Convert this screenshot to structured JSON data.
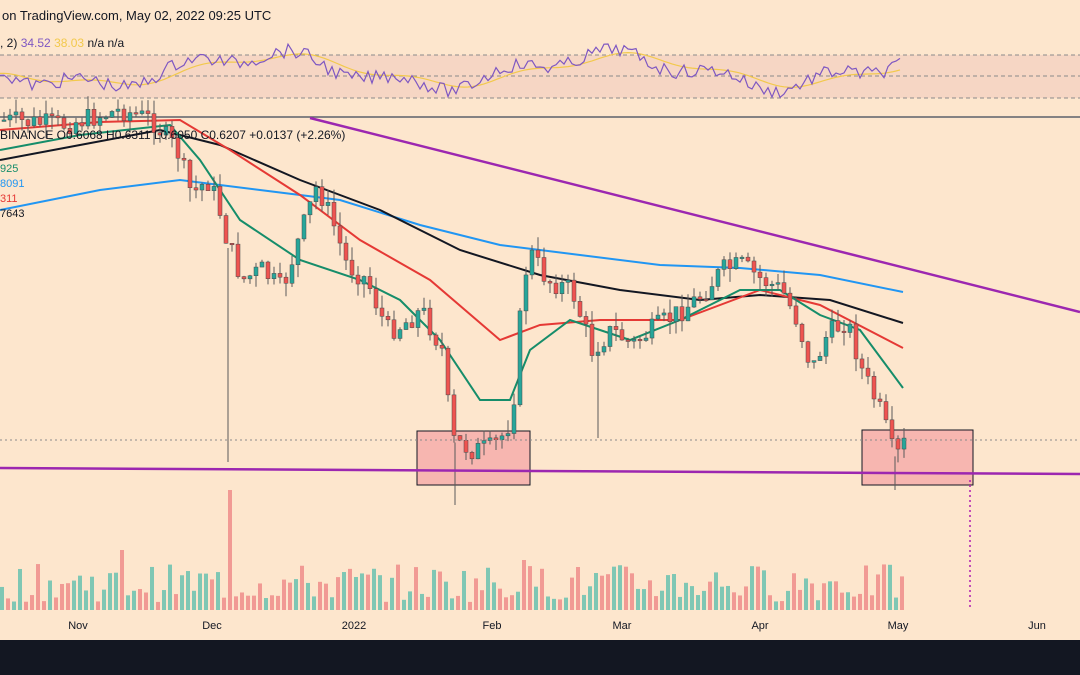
{
  "header": {
    "title": "on TradingView.com, May 02, 2022 09:25 UTC"
  },
  "rsi_panel": {
    "readout_prefix": ", 2)",
    "rsi_value": "34.52",
    "rsi_ma_value": "38.03",
    "na1": "n/a",
    "na2": "n/a",
    "color_rsi": "#7e57c2",
    "color_ma": "#f2c94c"
  },
  "price_panel": {
    "ohlc_readout": "BINANCE O0.6068 H0.6311 L0.6050 C0.6207 +0.0137 (+2.26%)",
    "ma_labels": [
      {
        "text": "925",
        "color": "#168d6a"
      },
      {
        "text": "8091",
        "color": "#2196f3"
      },
      {
        "text": "311",
        "color": "#e53935"
      },
      {
        "text": "7643",
        "color": "#131722"
      }
    ]
  },
  "chart_data": {
    "type": "candlestick",
    "x_axis_ticks": [
      "Nov",
      "Dec",
      "2022",
      "Feb",
      "Mar",
      "Apr",
      "May",
      "Jun"
    ],
    "series": [
      {
        "name": "",
        "kind": "candles",
        "color_up": "#26a69a",
        "color_down": "#ef5350"
      },
      {
        "name": "",
        "kind": "moving-average",
        "color": "#168d6a"
      },
      {
        "name": "",
        "kind": "moving-average",
        "color": "#e53935"
      },
      {
        "name": "",
        "kind": "moving-average",
        "color": "#131722"
      },
      {
        "name": "",
        "kind": "moving-average",
        "color": "#2196f3"
      }
    ],
    "annotations": [
      {
        "kind": "trendline-descending",
        "color": "#9c27b0"
      },
      {
        "kind": "support-line",
        "color": "#9c27b0"
      },
      {
        "kind": "highlight-box",
        "period": "late Jan - early Feb",
        "color": "#f4a6a6"
      },
      {
        "kind": "highlight-box",
        "period": "late Apr - early May",
        "color": "#f4a6a6"
      }
    ],
    "colors": {
      "background": "#fde6cd",
      "up": "#26a69a",
      "down": "#ef5350"
    }
  }
}
